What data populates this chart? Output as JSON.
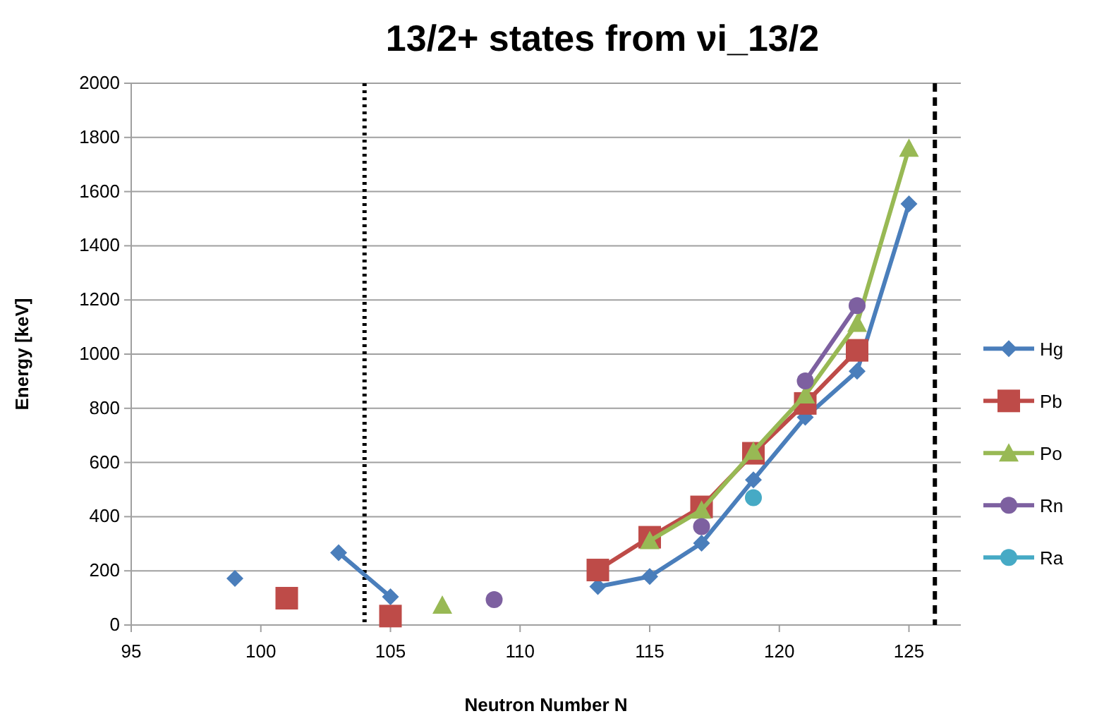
{
  "chart_data": {
    "type": "line",
    "title": "13/2+ states from νi_13/2",
    "xlabel": "Neutron Number N",
    "ylabel": "Energy [keV]",
    "x": [
      99,
      101,
      103,
      105,
      107,
      109,
      111,
      113,
      115,
      117,
      119,
      121,
      123,
      125
    ],
    "series": [
      {
        "name": "Hg",
        "color": "#4a7ebb",
        "marker": "diamond",
        "values": [
          172,
          null,
          267,
          104,
          null,
          null,
          null,
          142,
          179,
          302,
          536,
          767,
          937,
          1555
        ]
      },
      {
        "name": "Pb",
        "color": "#be4b48",
        "marker": "square",
        "values": [
          null,
          99,
          null,
          33,
          null,
          null,
          null,
          203,
          324,
          436,
          634,
          818,
          1014,
          null
        ]
      },
      {
        "name": "Po",
        "color": "#98b954",
        "marker": "triangle",
        "values": [
          null,
          null,
          null,
          null,
          73,
          null,
          null,
          null,
          311,
          424,
          641,
          849,
          1113,
          1760
        ]
      },
      {
        "name": "Rn",
        "color": "#7d60a0",
        "marker": "circle",
        "values": [
          null,
          null,
          null,
          null,
          null,
          94,
          null,
          null,
          null,
          363,
          null,
          901,
          1179,
          null
        ]
      },
      {
        "name": "Ra",
        "color": "#46aac5",
        "marker": "circle",
        "values": [
          null,
          null,
          null,
          null,
          null,
          null,
          null,
          null,
          null,
          null,
          470,
          null,
          null,
          null
        ]
      }
    ],
    "xlim": [
      95,
      127
    ],
    "xticks": [
      95,
      100,
      105,
      110,
      115,
      120,
      125
    ],
    "ylim": [
      0,
      2000
    ],
    "yticks": [
      0,
      200,
      400,
      600,
      800,
      1000,
      1200,
      1400,
      1600,
      1800,
      2000
    ],
    "ref_lines": [
      {
        "axis": "x",
        "value": 104,
        "color": "#000000",
        "line_style": "dotted"
      },
      {
        "axis": "x",
        "value": 126,
        "color": "#000000",
        "line_style": "dashed"
      }
    ],
    "grid": "y",
    "legend": "right"
  }
}
